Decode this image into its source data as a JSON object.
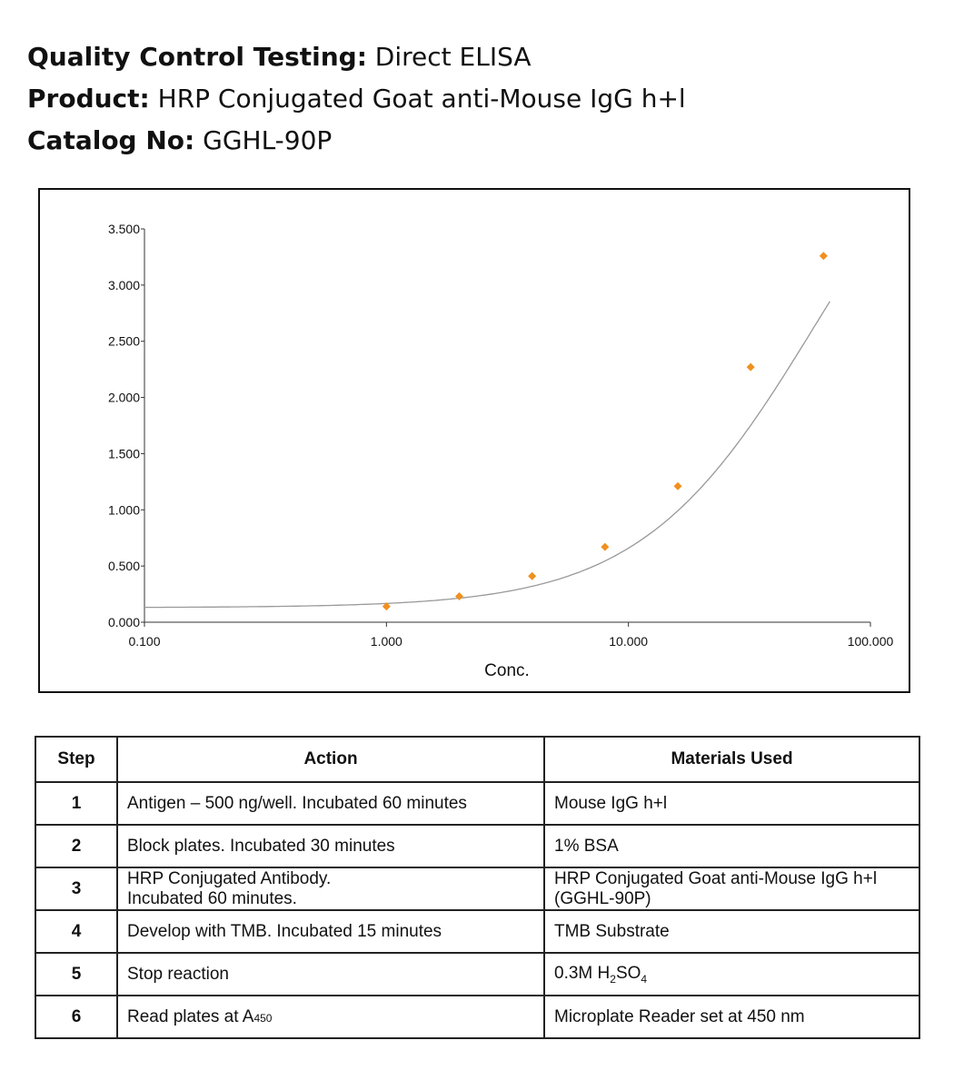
{
  "header": {
    "line1_label": "Quality Control Testing:",
    "line1_value": " Direct ELISA",
    "line2_label": "Product:",
    "line2_value": " HRP Conjugated Goat anti-Mouse IgG h+l",
    "line3_label": "Catalog No:",
    "line3_value": " GGHL-90P"
  },
  "chart_data": {
    "type": "scatter",
    "xscale": "log",
    "xlim": [
      0.1,
      100
    ],
    "ylim": [
      0,
      3.5
    ],
    "xlabel": "Conc.",
    "ylabel": "",
    "x_ticks": [
      "0.100",
      "1.000",
      "10.000",
      "100.000"
    ],
    "y_ticks": [
      "0.000",
      "0.500",
      "1.000",
      "1.500",
      "2.000",
      "2.500",
      "3.000",
      "3.500"
    ],
    "grid": false,
    "marker_color": "#f0901e",
    "fit_line_color": "#999999",
    "series": [
      {
        "x": [
          1,
          2,
          4,
          8,
          16,
          32,
          64
        ],
        "y": [
          0.14,
          0.23,
          0.41,
          0.67,
          1.21,
          2.27,
          3.26
        ]
      }
    ],
    "fit_curve": {
      "type": "4PL",
      "bottom": 0.13,
      "top": 5.2,
      "ec50": 60,
      "hill": 1.2
    }
  },
  "table": {
    "headers": [
      "Step",
      "Action",
      "Materials Used"
    ],
    "rows": [
      {
        "step": "1",
        "action": [
          "Antigen – 500 ng/well. Incubated 60 minutes"
        ],
        "material": [
          "Mouse IgG h+l"
        ]
      },
      {
        "step": "2",
        "action": [
          "Block plates. Incubated 30 minutes"
        ],
        "material": [
          "1% BSA"
        ]
      },
      {
        "step": "3",
        "action": [
          "HRP Conjugated Antibody.",
          "Incubated 60 minutes."
        ],
        "material": [
          "HRP Conjugated Goat anti-Mouse IgG h+l",
          "(GGHL-90P)"
        ]
      },
      {
        "step": "4",
        "action": [
          "Develop with TMB. Incubated 15 minutes"
        ],
        "material": [
          "TMB Substrate"
        ]
      },
      {
        "step": "5",
        "action": [
          "Stop reaction"
        ],
        "material_parts": [
          "0.3M H",
          "2",
          "SO",
          "4"
        ]
      },
      {
        "step": "6",
        "action_parts": [
          "Read plates at A",
          "450"
        ],
        "material": [
          "Microplate Reader set at 450 nm"
        ]
      }
    ]
  }
}
